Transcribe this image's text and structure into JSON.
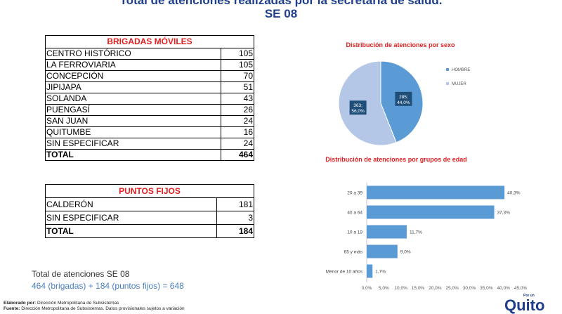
{
  "header": {
    "title": "Total de atenciones realizadas por la secretaría de salud.",
    "subtitle": "SE 08"
  },
  "brigadas": {
    "header": "BRIGADAS MÓVILES",
    "rows": [
      {
        "name": "CENTRO HISTÓRICO",
        "value": "105"
      },
      {
        "name": "LA FERROVIARIA",
        "value": "105"
      },
      {
        "name": "CONCEPCIÓN",
        "value": "70"
      },
      {
        "name": "JIPIJAPA",
        "value": "51"
      },
      {
        "name": "SOLANDA",
        "value": "43"
      },
      {
        "name": "PUENGASÍ",
        "value": "26"
      },
      {
        "name": "SAN JUAN",
        "value": "24"
      },
      {
        "name": "QUITUMBE",
        "value": "16"
      },
      {
        "name": "SIN ESPECIFICAR",
        "value": "24"
      }
    ],
    "total_label": "TOTAL",
    "total_value": "464"
  },
  "puntos": {
    "header": "PUNTOS FIJOS",
    "rows": [
      {
        "name": "CALDERÓN",
        "value": "181"
      },
      {
        "name": "SIN ESPECIFICAR",
        "value": "3"
      }
    ],
    "total_label": "TOTAL",
    "total_value": "184"
  },
  "summary": {
    "line1": "Total de atenciones SE 08",
    "line2": "464 (brigadas) + 184 (puntos fijos) =  648"
  },
  "footer": {
    "elaborado_label": "Elaborado por:",
    "elaborado_text": "Dirección Metropolitana de Subsistemas",
    "fuente_label": "Fuente:",
    "fuente_text": "Dirección Metropolitana de Subsistemas. Datos provisionales sujetos a variación"
  },
  "logo": {
    "small": "Por un",
    "big": "Quito"
  },
  "colors": {
    "title": "#1f3e8c",
    "red": "#e02020",
    "hombre": "#5b9bd5",
    "mujer": "#b4c7e7",
    "bar": "#5b9bd5"
  },
  "chart_data": [
    {
      "type": "pie",
      "title": "Distribución de atenciones por sexo",
      "slices": [
        {
          "label": "HOMBRE",
          "value": 285,
          "percent": "44,0%",
          "text": "285;",
          "pct_text": "44,0%"
        },
        {
          "label": "MUJER",
          "value": 363,
          "percent": "56,0%",
          "text": "363;",
          "pct_text": "56,0%"
        }
      ],
      "legend": "right"
    },
    {
      "type": "bar",
      "orientation": "horizontal",
      "title": "Distribución de atenciones por grupos de edad",
      "categories": [
        "20 a 39",
        "40 a  64",
        "10 a 19",
        "65 y más",
        "Menor de 10 años"
      ],
      "values": [
        40.3,
        37.3,
        11.7,
        9.0,
        1.7
      ],
      "value_labels": [
        "40,3%",
        "37,3%",
        "11,7%",
        "9,0%",
        "1,7%"
      ],
      "xlim": [
        0,
        45
      ],
      "ticks": [
        "0,0%",
        "5,0%",
        "10,0%",
        "15,0%",
        "20,0%",
        "25,0%",
        "30,0%",
        "35,0%",
        "40,0%",
        "45,0%"
      ]
    }
  ]
}
